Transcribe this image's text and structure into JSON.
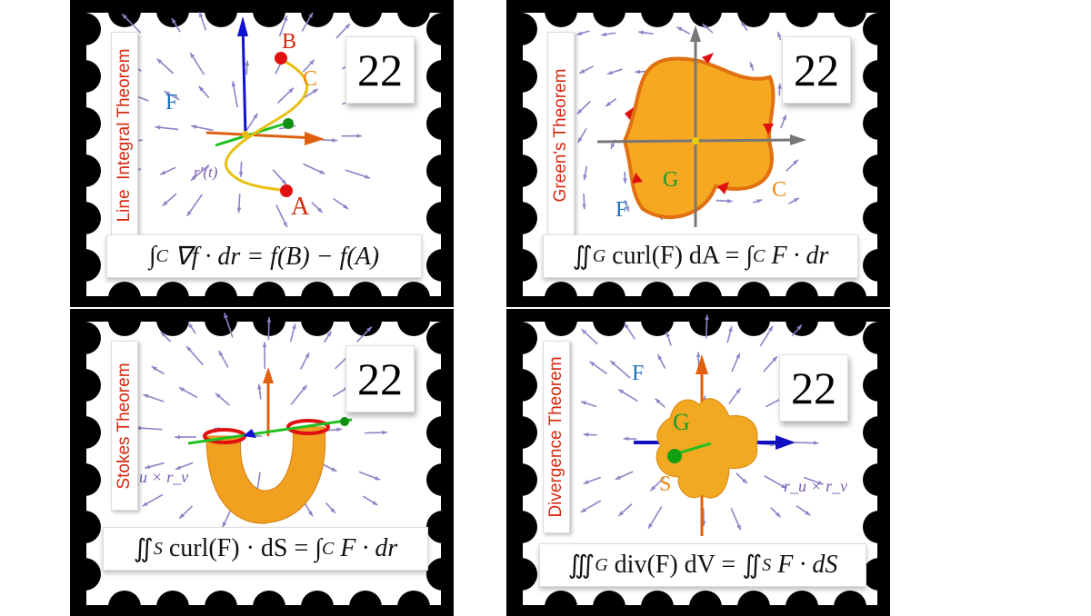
{
  "colors": {
    "title": "#d42a10",
    "surface": "#f2a81c",
    "arrows": "#8b84c8",
    "label_F": "#1f6fc0",
    "label_G": "#1a9a2a",
    "label_C": "#f08a10",
    "label_AB": "#d42a10"
  },
  "stamps": [
    {
      "title": "Line  Integral Theorem",
      "number": "22",
      "formula": "∫_C ∇f · dr = f(B) − f(A)",
      "formula_parts": {
        "int": "∫",
        "sub": "C",
        "rest": "∇f · dr = f(B) − f(A)"
      },
      "labels": {
        "F": "F",
        "B": "B",
        "C": "C",
        "A": "A",
        "rprime": "r′(t)"
      }
    },
    {
      "title": "Green's Theorem",
      "number": "22",
      "formula": "∬_G curl(F) dA = ∫_C F · dr",
      "formula_parts": {
        "int": "∬",
        "sub": "G",
        "mid": "curl(F) dA = ",
        "int2": "∫",
        "sub2": "C",
        "rest": "F · dr"
      },
      "labels": {
        "F": "F",
        "G": "G",
        "C": "C"
      }
    },
    {
      "title": "Stokes Theorem",
      "number": "22",
      "formula": "∬_S curl(F) · dS = ∫_C F · dr",
      "formula_parts": {
        "int": "∬",
        "sub": "S",
        "mid": "curl(F) · dS = ",
        "int2": "∫",
        "sub2": "C",
        "rest": "F · dr"
      },
      "labels": {
        "rurv": "r_u × r_v"
      }
    },
    {
      "title": "Divergence Theorem",
      "number": "22",
      "formula": "∭_G div(F) dV = ∬_S F · dS",
      "formula_parts": {
        "int": "∭",
        "sub": "G",
        "mid": "div(F) dV = ",
        "int2": "∬",
        "sub2": "S",
        "rest": "F · dS"
      },
      "labels": {
        "F": "F",
        "G": "G",
        "S": "S",
        "rurv": "r_u × r_v"
      }
    }
  ]
}
